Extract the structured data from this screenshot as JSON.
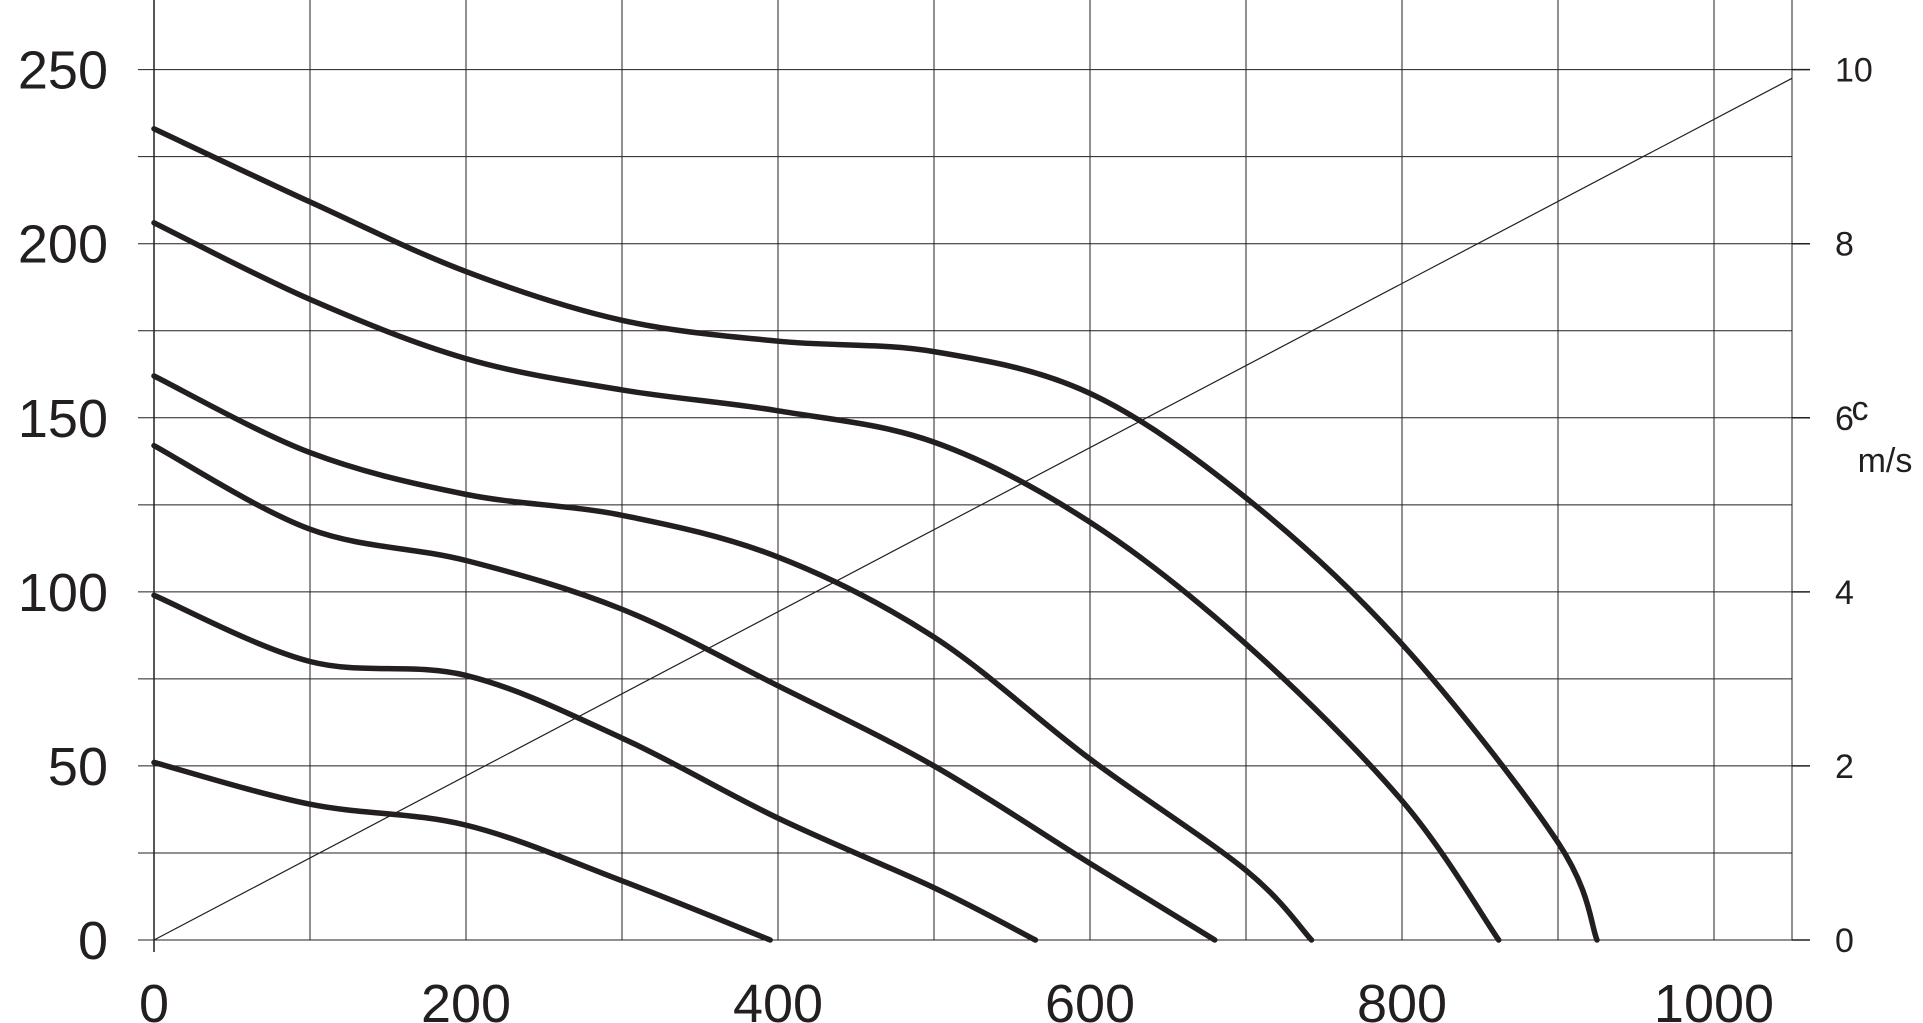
{
  "chart_data": {
    "type": "line",
    "title": "",
    "xlabel": "",
    "ylabel": "",
    "xlim": [
      0,
      1050
    ],
    "ylim": [
      0,
      270
    ],
    "x_ticks": [
      "0",
      "200",
      "400",
      "600",
      "800",
      "1000"
    ],
    "y_ticks": [
      "0",
      "50",
      "100",
      "150",
      "200",
      "250"
    ],
    "secondary_y": {
      "label_line1": "c",
      "label_line2": "m/s",
      "ticks": [
        "0",
        "2",
        "4",
        "6",
        "8",
        "10"
      ],
      "ylim": [
        0,
        10.8
      ]
    },
    "grid": true,
    "colors": {
      "curve": "#231f20",
      "grid": "#231f20",
      "text": "#231f20"
    },
    "series": [
      {
        "values": [
          [
            0,
            233
          ],
          [
            100,
            212
          ],
          [
            200,
            192
          ],
          [
            300,
            178
          ],
          [
            400,
            172
          ],
          [
            500,
            169
          ],
          [
            600,
            157
          ],
          [
            700,
            127
          ],
          [
            800,
            85
          ],
          [
            900,
            28
          ],
          [
            925,
            0
          ]
        ]
      },
      {
        "values": [
          [
            0,
            206
          ],
          [
            100,
            184
          ],
          [
            200,
            167
          ],
          [
            300,
            158
          ],
          [
            400,
            152
          ],
          [
            500,
            143
          ],
          [
            600,
            120
          ],
          [
            700,
            85
          ],
          [
            800,
            40
          ],
          [
            862,
            0
          ]
        ]
      },
      {
        "values": [
          [
            0,
            162
          ],
          [
            100,
            140
          ],
          [
            200,
            128
          ],
          [
            300,
            122
          ],
          [
            400,
            110
          ],
          [
            500,
            87
          ],
          [
            600,
            52
          ],
          [
            700,
            20
          ],
          [
            742,
            0
          ]
        ]
      },
      {
        "values": [
          [
            0,
            142
          ],
          [
            100,
            118
          ],
          [
            200,
            109
          ],
          [
            300,
            95
          ],
          [
            400,
            73
          ],
          [
            500,
            50
          ],
          [
            600,
            22
          ],
          [
            680,
            0
          ]
        ]
      },
      {
        "values": [
          [
            0,
            99
          ],
          [
            100,
            80
          ],
          [
            200,
            76
          ],
          [
            300,
            58
          ],
          [
            400,
            35
          ],
          [
            500,
            15
          ],
          [
            565,
            0
          ]
        ]
      },
      {
        "values": [
          [
            0,
            51
          ],
          [
            100,
            39
          ],
          [
            200,
            33
          ],
          [
            300,
            17
          ],
          [
            395,
            0
          ]
        ]
      }
    ],
    "velocity_line": {
      "values": [
        [
          0,
          0
        ],
        [
          1050,
          9.9
        ]
      ]
    }
  }
}
